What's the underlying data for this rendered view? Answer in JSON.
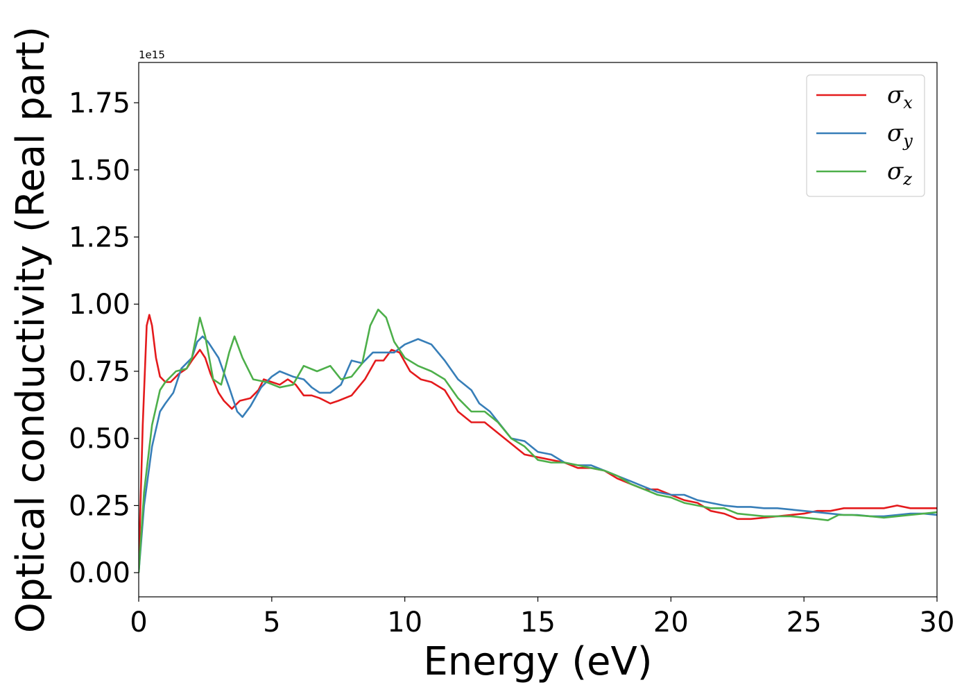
{
  "chart_data": {
    "type": "line",
    "title": "",
    "xlabel": "Energy (eV)",
    "ylabel": "Optical conductivity (Real part)",
    "y_offset_text": "1e15",
    "xlim": [
      0,
      30
    ],
    "ylim": [
      -0.09,
      1.9
    ],
    "x_ticks": [
      0,
      5,
      10,
      15,
      20,
      25,
      30
    ],
    "x_tick_labels": [
      "0",
      "5",
      "10",
      "15",
      "20",
      "25",
      "30"
    ],
    "y_ticks": [
      0.0,
      0.25,
      0.5,
      0.75,
      1.0,
      1.25,
      1.5,
      1.75
    ],
    "y_tick_labels": [
      "0.00",
      "0.25",
      "0.50",
      "0.75",
      "1.00",
      "1.25",
      "1.50",
      "1.75"
    ],
    "grid": false,
    "legend_position": "top-right",
    "series": [
      {
        "name": "σx",
        "legend_symbol": "σ",
        "legend_subscript": "x",
        "color": "#e41a1c",
        "points": [
          [
            0,
            0.02
          ],
          [
            0.15,
            0.55
          ],
          [
            0.3,
            0.92
          ],
          [
            0.4,
            0.96
          ],
          [
            0.5,
            0.92
          ],
          [
            0.65,
            0.8
          ],
          [
            0.8,
            0.73
          ],
          [
            1.0,
            0.71
          ],
          [
            1.2,
            0.71
          ],
          [
            1.5,
            0.74
          ],
          [
            1.8,
            0.76
          ],
          [
            2.0,
            0.79
          ],
          [
            2.3,
            0.83
          ],
          [
            2.5,
            0.8
          ],
          [
            2.7,
            0.74
          ],
          [
            3.0,
            0.67
          ],
          [
            3.2,
            0.64
          ],
          [
            3.5,
            0.61
          ],
          [
            3.8,
            0.64
          ],
          [
            4.2,
            0.65
          ],
          [
            4.5,
            0.68
          ],
          [
            4.7,
            0.72
          ],
          [
            5.0,
            0.71
          ],
          [
            5.3,
            0.7
          ],
          [
            5.6,
            0.72
          ],
          [
            5.9,
            0.7
          ],
          [
            6.2,
            0.66
          ],
          [
            6.5,
            0.66
          ],
          [
            6.8,
            0.65
          ],
          [
            7.2,
            0.63
          ],
          [
            7.5,
            0.64
          ],
          [
            8.0,
            0.66
          ],
          [
            8.5,
            0.72
          ],
          [
            8.9,
            0.79
          ],
          [
            9.2,
            0.79
          ],
          [
            9.5,
            0.83
          ],
          [
            9.8,
            0.82
          ],
          [
            10.2,
            0.75
          ],
          [
            10.6,
            0.72
          ],
          [
            11.0,
            0.71
          ],
          [
            11.5,
            0.68
          ],
          [
            12.0,
            0.6
          ],
          [
            12.5,
            0.56
          ],
          [
            13.0,
            0.56
          ],
          [
            13.5,
            0.52
          ],
          [
            14.0,
            0.48
          ],
          [
            14.5,
            0.44
          ],
          [
            15.0,
            0.43
          ],
          [
            15.5,
            0.42
          ],
          [
            16.0,
            0.41
          ],
          [
            16.5,
            0.39
          ],
          [
            17.0,
            0.39
          ],
          [
            17.5,
            0.38
          ],
          [
            18.0,
            0.35
          ],
          [
            18.5,
            0.33
          ],
          [
            19.0,
            0.31
          ],
          [
            19.5,
            0.31
          ],
          [
            20.0,
            0.29
          ],
          [
            20.5,
            0.27
          ],
          [
            21.0,
            0.26
          ],
          [
            21.5,
            0.23
          ],
          [
            22.0,
            0.22
          ],
          [
            22.5,
            0.2
          ],
          [
            23.0,
            0.2
          ],
          [
            23.5,
            0.205
          ],
          [
            24.0,
            0.21
          ],
          [
            24.5,
            0.215
          ],
          [
            25.0,
            0.22
          ],
          [
            25.5,
            0.23
          ],
          [
            26.0,
            0.23
          ],
          [
            26.5,
            0.24
          ],
          [
            27.0,
            0.24
          ],
          [
            27.5,
            0.24
          ],
          [
            28.0,
            0.24
          ],
          [
            28.5,
            0.25
          ],
          [
            29.0,
            0.24
          ],
          [
            29.5,
            0.24
          ],
          [
            30,
            0.24
          ]
        ]
      },
      {
        "name": "σy",
        "legend_symbol": "σ",
        "legend_subscript": "y",
        "color": "#377eb8",
        "points": [
          [
            0,
            0.0
          ],
          [
            0.2,
            0.25
          ],
          [
            0.5,
            0.47
          ],
          [
            0.8,
            0.6
          ],
          [
            1.0,
            0.63
          ],
          [
            1.3,
            0.67
          ],
          [
            1.6,
            0.76
          ],
          [
            2.0,
            0.8
          ],
          [
            2.2,
            0.86
          ],
          [
            2.4,
            0.88
          ],
          [
            2.6,
            0.86
          ],
          [
            3.0,
            0.8
          ],
          [
            3.4,
            0.69
          ],
          [
            3.7,
            0.6
          ],
          [
            3.9,
            0.58
          ],
          [
            4.2,
            0.62
          ],
          [
            4.6,
            0.69
          ],
          [
            5.0,
            0.73
          ],
          [
            5.3,
            0.75
          ],
          [
            5.8,
            0.73
          ],
          [
            6.2,
            0.72
          ],
          [
            6.5,
            0.69
          ],
          [
            6.8,
            0.67
          ],
          [
            7.2,
            0.67
          ],
          [
            7.6,
            0.7
          ],
          [
            8.0,
            0.79
          ],
          [
            8.4,
            0.78
          ],
          [
            8.8,
            0.82
          ],
          [
            9.2,
            0.82
          ],
          [
            9.6,
            0.82
          ],
          [
            10.0,
            0.85
          ],
          [
            10.5,
            0.87
          ],
          [
            11.0,
            0.85
          ],
          [
            11.5,
            0.79
          ],
          [
            12.0,
            0.72
          ],
          [
            12.5,
            0.68
          ],
          [
            12.8,
            0.63
          ],
          [
            13.2,
            0.6
          ],
          [
            13.6,
            0.55
          ],
          [
            14.0,
            0.5
          ],
          [
            14.5,
            0.49
          ],
          [
            15.0,
            0.45
          ],
          [
            15.5,
            0.44
          ],
          [
            16.0,
            0.41
          ],
          [
            16.5,
            0.4
          ],
          [
            17.0,
            0.4
          ],
          [
            17.5,
            0.38
          ],
          [
            18.0,
            0.36
          ],
          [
            18.5,
            0.34
          ],
          [
            19.0,
            0.32
          ],
          [
            19.5,
            0.3
          ],
          [
            20.0,
            0.29
          ],
          [
            20.5,
            0.29
          ],
          [
            21.0,
            0.27
          ],
          [
            21.5,
            0.26
          ],
          [
            22.0,
            0.25
          ],
          [
            22.5,
            0.245
          ],
          [
            23.0,
            0.245
          ],
          [
            23.5,
            0.24
          ],
          [
            24.0,
            0.24
          ],
          [
            24.5,
            0.235
          ],
          [
            25.0,
            0.23
          ],
          [
            25.5,
            0.225
          ],
          [
            26.0,
            0.22
          ],
          [
            26.5,
            0.215
          ],
          [
            27.0,
            0.215
          ],
          [
            27.5,
            0.21
          ],
          [
            28.0,
            0.21
          ],
          [
            28.5,
            0.215
          ],
          [
            29.0,
            0.22
          ],
          [
            29.5,
            0.22
          ],
          [
            30,
            0.215
          ]
        ]
      },
      {
        "name": "σz",
        "legend_symbol": "σ",
        "legend_subscript": "z",
        "color": "#4daf4a",
        "points": [
          [
            0,
            0.0
          ],
          [
            0.2,
            0.3
          ],
          [
            0.5,
            0.55
          ],
          [
            0.8,
            0.68
          ],
          [
            1.0,
            0.71
          ],
          [
            1.4,
            0.75
          ],
          [
            1.8,
            0.76
          ],
          [
            2.0,
            0.8
          ],
          [
            2.3,
            0.95
          ],
          [
            2.5,
            0.88
          ],
          [
            2.8,
            0.72
          ],
          [
            3.1,
            0.7
          ],
          [
            3.4,
            0.82
          ],
          [
            3.6,
            0.88
          ],
          [
            3.9,
            0.8
          ],
          [
            4.3,
            0.72
          ],
          [
            4.8,
            0.71
          ],
          [
            5.3,
            0.69
          ],
          [
            5.8,
            0.7
          ],
          [
            6.2,
            0.77
          ],
          [
            6.7,
            0.75
          ],
          [
            7.2,
            0.77
          ],
          [
            7.6,
            0.72
          ],
          [
            8.0,
            0.73
          ],
          [
            8.4,
            0.78
          ],
          [
            8.7,
            0.92
          ],
          [
            9.0,
            0.98
          ],
          [
            9.3,
            0.95
          ],
          [
            9.6,
            0.86
          ],
          [
            10.0,
            0.8
          ],
          [
            10.5,
            0.77
          ],
          [
            11.0,
            0.75
          ],
          [
            11.5,
            0.72
          ],
          [
            12.0,
            0.65
          ],
          [
            12.5,
            0.6
          ],
          [
            13.0,
            0.6
          ],
          [
            13.5,
            0.56
          ],
          [
            14.0,
            0.5
          ],
          [
            14.5,
            0.47
          ],
          [
            15.0,
            0.42
          ],
          [
            15.5,
            0.41
          ],
          [
            16.0,
            0.41
          ],
          [
            16.5,
            0.4
          ],
          [
            17.0,
            0.39
          ],
          [
            17.5,
            0.38
          ],
          [
            18.0,
            0.36
          ],
          [
            18.5,
            0.33
          ],
          [
            19.0,
            0.31
          ],
          [
            19.5,
            0.29
          ],
          [
            20.0,
            0.28
          ],
          [
            20.5,
            0.26
          ],
          [
            21.0,
            0.25
          ],
          [
            21.5,
            0.24
          ],
          [
            22.0,
            0.24
          ],
          [
            22.5,
            0.22
          ],
          [
            23.0,
            0.215
          ],
          [
            23.5,
            0.21
          ],
          [
            24.0,
            0.21
          ],
          [
            24.5,
            0.21
          ],
          [
            25.0,
            0.205
          ],
          [
            25.5,
            0.2
          ],
          [
            25.9,
            0.195
          ],
          [
            26.3,
            0.215
          ],
          [
            26.8,
            0.215
          ],
          [
            27.5,
            0.21
          ],
          [
            28.0,
            0.205
          ],
          [
            28.5,
            0.21
          ],
          [
            29.0,
            0.215
          ],
          [
            29.5,
            0.22
          ],
          [
            30,
            0.225
          ]
        ]
      }
    ]
  }
}
